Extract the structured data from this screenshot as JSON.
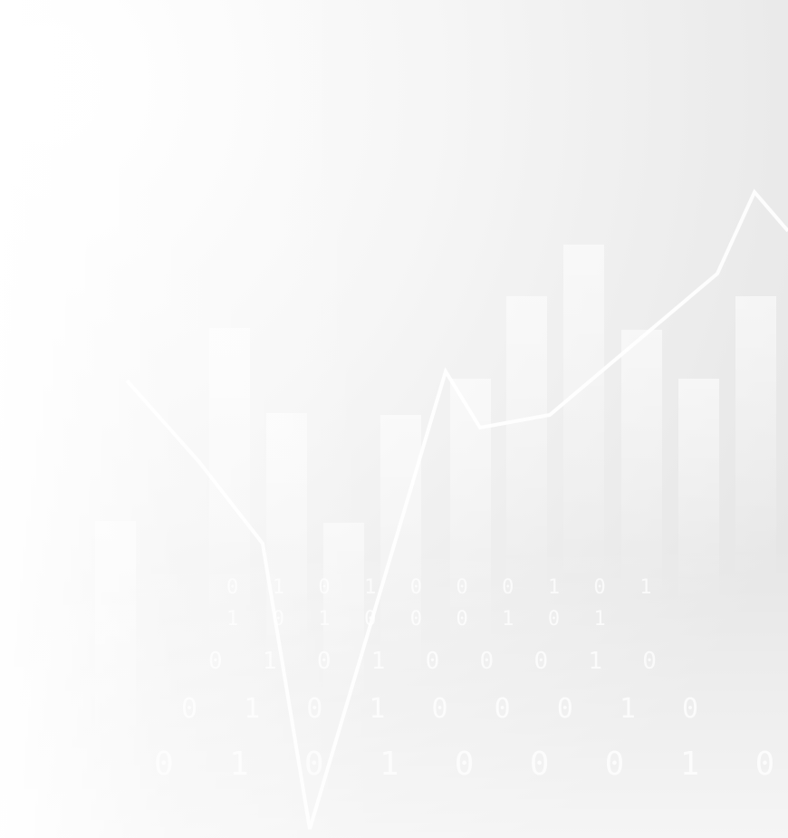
{
  "digit_rows": [
    "0 1 0 1 0 0 0 1 0 1",
    "1 0 1 0 0 0 1 0 1",
    "0 1 0 1 0 0 0 1 0",
    "0 1 0 1 0 0 0 1 0",
    "0 1 0 1 0 0 0 1 0"
  ]
}
